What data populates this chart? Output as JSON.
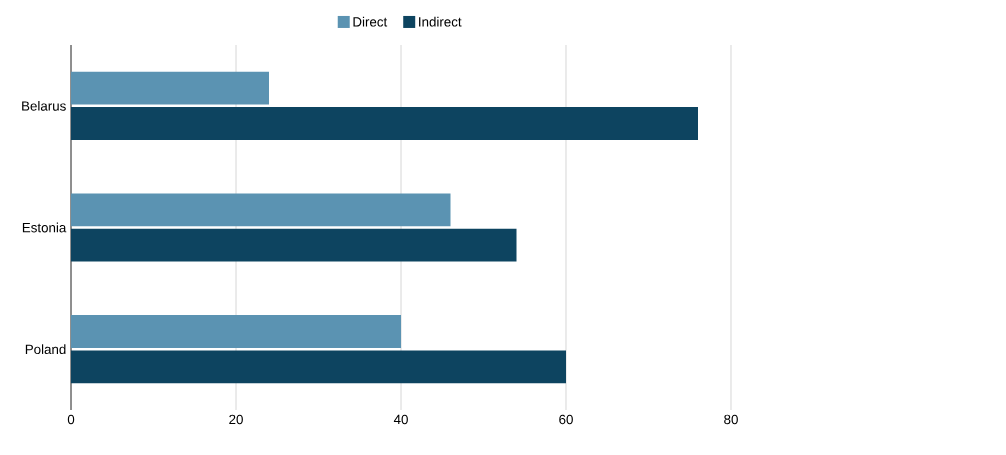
{
  "chart_data": {
    "type": "bar",
    "orientation": "horizontal",
    "categories": [
      "Belarus",
      "Estonia",
      "Poland"
    ],
    "series": [
      {
        "name": "Direct",
        "color": "#5b93b2",
        "values": [
          24,
          46,
          40
        ]
      },
      {
        "name": "Indirect",
        "color": "#0d4460",
        "values": [
          76,
          54,
          60
        ]
      }
    ],
    "xlim": [
      0,
      80
    ],
    "xticks": [
      0,
      20,
      40,
      60,
      80
    ],
    "grid": "x",
    "legend": "top"
  }
}
